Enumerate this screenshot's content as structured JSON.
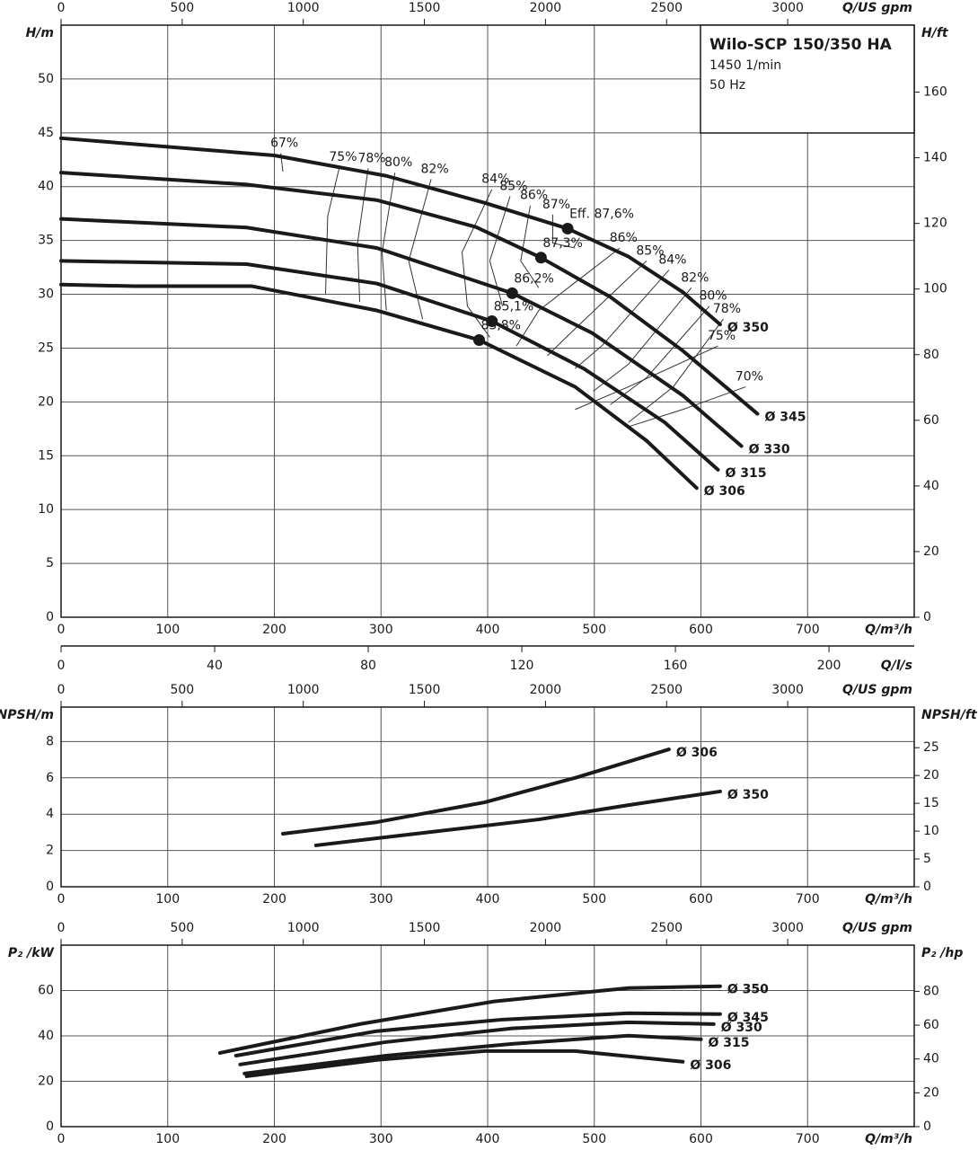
{
  "chart_data": [
    {
      "type": "line",
      "title": "Wilo-SCP 150/350 HA",
      "annotations": [
        "1450 1/min",
        "50 Hz"
      ],
      "xlabel": "Q/m³/h",
      "ylabel": "H/m",
      "y2label": "H/ft",
      "x2label": "Q/US gpm",
      "x3label": "Q/l/s",
      "xlim": [
        0,
        800
      ],
      "xticks": [
        0,
        100,
        200,
        300,
        400,
        500,
        600,
        700
      ],
      "x2lim": [
        0,
        3522.4
      ],
      "x2ticks": [
        0,
        500,
        1000,
        1500,
        2000,
        2500,
        3000
      ],
      "x3lim": [
        0,
        222.2
      ],
      "x3ticks": [
        0,
        40,
        80,
        120,
        160,
        200
      ],
      "ylim": [
        0,
        55
      ],
      "yticks": [
        0,
        5,
        10,
        15,
        20,
        25,
        30,
        35,
        40,
        45,
        50
      ],
      "y2lim": [
        0,
        180.4
      ],
      "y2ticks": [
        0,
        20,
        40,
        60,
        80,
        100,
        120,
        140,
        160
      ],
      "grid": true,
      "series": [
        {
          "name": "Ø 350",
          "color": "#1a1a1a",
          "x": [
            0,
            200,
            305,
            397,
            475,
            532,
            583,
            618
          ],
          "values": [
            44.5,
            42.9,
            41.0,
            38.5,
            36.1,
            33.5,
            30.2,
            27.2
          ]
        },
        {
          "name": "Ø 345",
          "color": "#1a1a1a",
          "x": [
            0,
            174,
            296,
            389,
            450,
            515,
            583,
            653
          ],
          "values": [
            41.3,
            40.2,
            38.75,
            36.25,
            33.4,
            29.75,
            24.75,
            18.9
          ]
        },
        {
          "name": "Ø 330",
          "color": "#1a1a1a",
          "x": [
            0,
            174,
            296,
            423,
            498,
            583,
            638
          ],
          "values": [
            37.0,
            36.2,
            34.3,
            30.1,
            26.4,
            20.6,
            15.9
          ]
        },
        {
          "name": "Ø 315",
          "color": "#1a1a1a",
          "x": [
            0,
            174,
            296,
            404,
            490,
            566,
            616
          ],
          "values": [
            33.1,
            32.8,
            31.0,
            27.5,
            23.1,
            18.1,
            13.7
          ]
        },
        {
          "name": "Ø 306",
          "color": "#1a1a1a",
          "x": [
            0,
            69,
            179,
            296,
            392,
            482,
            549,
            596
          ],
          "values": [
            30.9,
            30.75,
            30.75,
            28.5,
            25.75,
            21.4,
            16.4,
            12.0
          ]
        }
      ],
      "efficiency_points": {
        "labels": [
          "Eff. 87,6%",
          "87,3%",
          "86,2%",
          "85,1%",
          "83,8%"
        ],
        "x": [
          475,
          450,
          423,
          404,
          392
        ],
        "values": [
          36.1,
          33.4,
          30.1,
          27.5,
          25.75
        ]
      },
      "efficiency_contours": [
        {
          "label": "67%",
          "x": [
            206,
            208
          ],
          "values": [
            43.1,
            41.4
          ]
        },
        {
          "label": "75%",
          "x": [
            261,
            250,
            248
          ],
          "values": [
            41.8,
            37.25,
            30.0
          ]
        },
        {
          "label": "78%",
          "x": [
            288,
            278,
            280
          ],
          "values": [
            41.7,
            34.75,
            29.3
          ]
        },
        {
          "label": "80%",
          "x": [
            313,
            301,
            305
          ],
          "values": [
            41.3,
            33.9,
            28.5
          ]
        },
        {
          "label": "82%",
          "x": [
            347,
            326,
            339
          ],
          "values": [
            40.7,
            33.1,
            27.7
          ]
        },
        {
          "label": "84%",
          "x": [
            404,
            376,
            381,
            402
          ],
          "values": [
            39.75,
            33.9,
            28.9,
            26.0
          ]
        },
        {
          "label": "85%",
          "x": [
            421,
            402,
            414
          ],
          "values": [
            39.1,
            33.1,
            28.9
          ]
        },
        {
          "label": "86%",
          "x": [
            440,
            431,
            448
          ],
          "values": [
            38.25,
            33.1,
            30.6
          ]
        },
        {
          "label": "87%",
          "x": [
            461,
            461,
            482
          ],
          "values": [
            37.4,
            34.75,
            34.3
          ]
        },
        {
          "label": "86%",
          "x": [
            524,
            448,
            427
          ],
          "values": [
            34.3,
            28.5,
            25.2
          ]
        },
        {
          "label": "85%",
          "x": [
            549,
            482,
            456
          ],
          "values": [
            33.1,
            26.8,
            24.3
          ]
        },
        {
          "label": "84%",
          "x": [
            570,
            507,
            482
          ],
          "values": [
            32.25,
            25.2,
            23.1
          ]
        },
        {
          "label": "82%",
          "x": [
            591,
            532,
            499
          ],
          "values": [
            30.6,
            23.5,
            21.0
          ]
        },
        {
          "label": "80%",
          "x": [
            608,
            549,
            515
          ],
          "values": [
            28.9,
            22.25,
            19.75
          ]
        },
        {
          "label": "78%",
          "x": [
            621,
            574,
            532
          ],
          "values": [
            27.7,
            21.4,
            18.1
          ]
        },
        {
          "label": "75%",
          "x": [
            616,
            532,
            482
          ],
          "values": [
            25.2,
            21.4,
            19.3
          ]
        },
        {
          "label": "70%",
          "x": [
            642,
            583,
            532
          ],
          "values": [
            21.4,
            19.3,
            17.7
          ]
        }
      ]
    },
    {
      "type": "line",
      "xlabel": "Q/m³/h",
      "ylabel": "NPSH/m",
      "y2label": "NPSH/ft",
      "x2label": "Q/US gpm",
      "xlim": [
        0,
        800
      ],
      "xticks": [
        0,
        100,
        200,
        300,
        400,
        500,
        600,
        700
      ],
      "x2lim": [
        0,
        3522.4
      ],
      "x2ticks": [
        0,
        500,
        1000,
        1500,
        2000,
        2500,
        3000
      ],
      "ylim": [
        0,
        9.9
      ],
      "yticks": [
        0,
        2,
        4,
        6,
        8
      ],
      "y2lim": [
        0,
        32.3
      ],
      "y2ticks": [
        0,
        5,
        10,
        15,
        20,
        25
      ],
      "grid": true,
      "series": [
        {
          "name": "Ø 306",
          "color": "#1a1a1a",
          "x": [
            208,
            296,
            397,
            482,
            570
          ],
          "values": [
            2.92,
            3.56,
            4.65,
            6.0,
            7.57
          ]
        },
        {
          "name": "Ø 350",
          "color": "#1a1a1a",
          "x": [
            239,
            347,
            448,
            532,
            618
          ],
          "values": [
            2.28,
            3.02,
            3.71,
            4.5,
            5.25
          ]
        }
      ]
    },
    {
      "type": "line",
      "xlabel": "Q/m³/h",
      "ylabel": "P₂ /kW",
      "y2label": "P₂ /hp",
      "x2label": "Q/US gpm",
      "xlim": [
        0,
        800
      ],
      "xticks": [
        0,
        100,
        200,
        300,
        400,
        500,
        600,
        700
      ],
      "x2lim": [
        0,
        3522.4
      ],
      "x2ticks": [
        0,
        500,
        1000,
        1500,
        2000,
        2500,
        3000
      ],
      "ylim": [
        0,
        80
      ],
      "yticks": [
        0,
        20,
        40,
        60
      ],
      "y2lim": [
        0,
        107.3
      ],
      "y2ticks": [
        0,
        20,
        40,
        60,
        80
      ],
      "grid": true,
      "series": [
        {
          "name": "Ø 350",
          "color": "#1a1a1a",
          "x": [
            149,
            280,
            406,
            532,
            618
          ],
          "values": [
            32.5,
            45.2,
            55.2,
            61.1,
            61.9
          ]
        },
        {
          "name": "Ø 345",
          "color": "#1a1a1a",
          "x": [
            164,
            296,
            414,
            532,
            618
          ],
          "values": [
            31.3,
            42.1,
            47.2,
            50.0,
            49.6
          ]
        },
        {
          "name": "Ø 330",
          "color": "#1a1a1a",
          "x": [
            168,
            305,
            423,
            532,
            612
          ],
          "values": [
            27.4,
            37.3,
            43.3,
            46.0,
            45.2
          ]
        },
        {
          "name": "Ø 315",
          "color": "#1a1a1a",
          "x": [
            172,
            305,
            423,
            532,
            600
          ],
          "values": [
            23.4,
            31.3,
            36.5,
            40.1,
            38.5
          ]
        },
        {
          "name": "Ø 306",
          "color": "#1a1a1a",
          "x": [
            174,
            296,
            397,
            482,
            583
          ],
          "values": [
            22.2,
            29.4,
            33.3,
            33.3,
            28.6
          ]
        }
      ]
    }
  ]
}
